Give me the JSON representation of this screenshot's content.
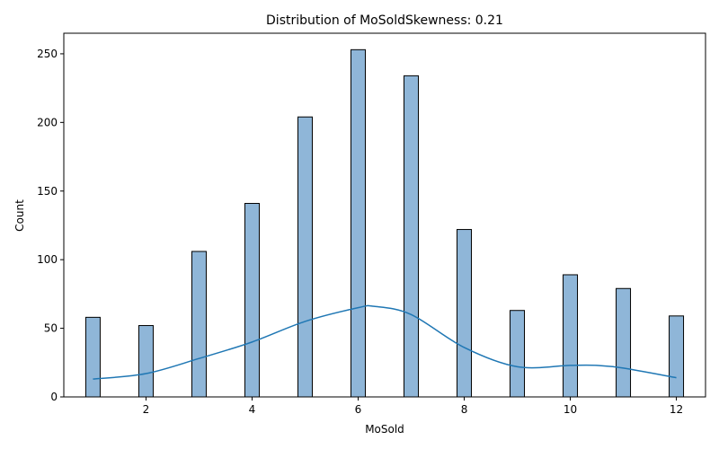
{
  "chart_data": {
    "type": "bar",
    "title": "Distribution of MoSoldSkewness: 0.21",
    "xlabel": "MoSold",
    "ylabel": "Count",
    "x": [
      1,
      2,
      3,
      4,
      5,
      6,
      7,
      8,
      9,
      10,
      11,
      12
    ],
    "values": [
      58,
      52,
      106,
      141,
      204,
      253,
      234,
      122,
      63,
      89,
      79,
      59
    ],
    "kde": {
      "x": [
        1,
        2,
        3,
        4,
        5,
        6,
        6.3,
        7,
        8,
        9,
        10,
        10.5,
        11,
        12
      ],
      "y": [
        13,
        17,
        28,
        40,
        55,
        65,
        66,
        60,
        36,
        22,
        23,
        23,
        21,
        14
      ]
    },
    "xlim": [
      0.45,
      12.55
    ],
    "ylim": [
      0,
      265
    ],
    "xticks": [
      2,
      4,
      6,
      8,
      10,
      12
    ],
    "yticks": [
      0,
      50,
      100,
      150,
      200,
      250
    ],
    "grid": false,
    "colors": {
      "bar_fill": "#8fb6d8",
      "bar_edge": "#000000",
      "kde_line": "#1f77b4"
    }
  }
}
